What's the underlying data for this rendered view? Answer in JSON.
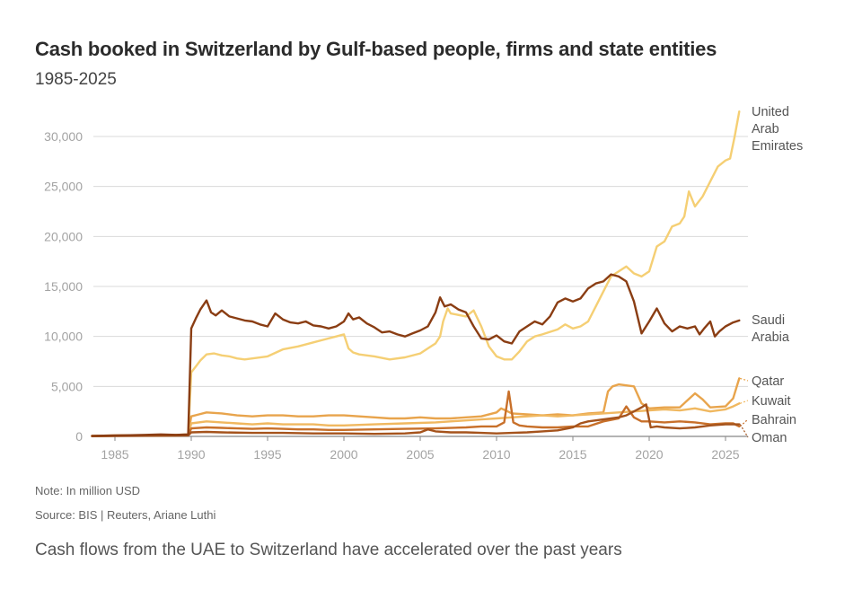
{
  "chart_data": {
    "type": "line",
    "title": "Cash booked in Switzerland by Gulf-based people, firms and state entities",
    "subtitle": "1985-2025",
    "xlabel": "",
    "ylabel": "",
    "xlim": [
      1983.5,
      2026.5
    ],
    "ylim": [
      0,
      33000
    ],
    "yticks": [
      0,
      5000,
      10000,
      15000,
      20000,
      25000,
      30000
    ],
    "ytick_labels": [
      "0",
      "5,000",
      "10,000",
      "15,000",
      "20,000",
      "25,000",
      "30,000"
    ],
    "xticks": [
      1985,
      1990,
      1995,
      2000,
      2005,
      2010,
      2015,
      2020,
      2025
    ],
    "xtick_labels": [
      "1985",
      "1990",
      "1995",
      "2000",
      "2005",
      "2010",
      "2015",
      "2020",
      "2025"
    ],
    "grid": true,
    "series": [
      {
        "name": "United Arab Emirates",
        "label_lines": [
          "United",
          "Arab",
          "Emirates"
        ],
        "color": "#f5cf74",
        "x": [
          1983.5,
          1985,
          1986,
          1987,
          1988,
          1989,
          1989.8,
          1990.0,
          1990.3,
          1990.6,
          1991.0,
          1991.5,
          1992,
          1992.5,
          1993,
          1993.5,
          1994,
          1995,
          1996,
          1997,
          1998,
          1999,
          1999.5,
          2000,
          2000.3,
          2000.6,
          2001,
          2002,
          2003,
          2004,
          2005,
          2005.5,
          2006,
          2006.3,
          2006.5,
          2006.8,
          2007,
          2008,
          2008.5,
          2009,
          2009.5,
          2010,
          2010.5,
          2011,
          2011.5,
          2012,
          2012.5,
          2013,
          2014,
          2014.5,
          2015,
          2015.5,
          2016,
          2016.5,
          2017,
          2017.5,
          2018,
          2018.5,
          2019,
          2019.5,
          2020,
          2020.5,
          2021,
          2021.5,
          2022,
          2022.3,
          2022.6,
          2023,
          2023.5,
          2024,
          2024.5,
          2025,
          2025.3,
          2025.6,
          2025.9
        ],
        "y": [
          50,
          80,
          100,
          120,
          130,
          150,
          200,
          6400,
          7000,
          7600,
          8200,
          8300,
          8100,
          8000,
          7800,
          7700,
          7800,
          8000,
          8700,
          9000,
          9400,
          9800,
          10000,
          10200,
          8800,
          8400,
          8200,
          8000,
          7700,
          7900,
          8300,
          8800,
          9300,
          10000,
          11500,
          12800,
          12300,
          12000,
          12600,
          11000,
          9000,
          8000,
          7700,
          7700,
          8500,
          9500,
          10000,
          10200,
          10700,
          11200,
          10800,
          11000,
          11500,
          13000,
          14500,
          16000,
          16500,
          17000,
          16300,
          16000,
          16500,
          19000,
          19500,
          21000,
          21300,
          22000,
          24500,
          23000,
          24000,
          25500,
          27000,
          27600,
          27800,
          30000,
          32500
        ]
      },
      {
        "name": "Saudi Arabia",
        "label_lines": [
          "Saudi",
          "Arabia"
        ],
        "color": "#8a3d13",
        "x": [
          1983.5,
          1985,
          1986,
          1987,
          1988,
          1989,
          1989.8,
          1990.0,
          1990.3,
          1990.6,
          1991.0,
          1991.3,
          1991.6,
          1992,
          1992.5,
          1993,
          1993.5,
          1994,
          1994.5,
          1995,
          1995.5,
          1996,
          1996.5,
          1997,
          1997.5,
          1998,
          1998.5,
          1999,
          1999.5,
          2000,
          2000.3,
          2000.6,
          2001,
          2001.5,
          2002,
          2002.5,
          2003,
          2003.5,
          2004,
          2004.5,
          2005,
          2005.5,
          2006,
          2006.3,
          2006.6,
          2007,
          2007.5,
          2008,
          2008.5,
          2009,
          2009.5,
          2010,
          2010.5,
          2011,
          2011.5,
          2012,
          2012.5,
          2013,
          2013.5,
          2014,
          2014.5,
          2015,
          2015.5,
          2016,
          2016.5,
          2017,
          2017.5,
          2018,
          2018.5,
          2019,
          2019.5,
          2020,
          2020.5,
          2021,
          2021.5,
          2022,
          2022.5,
          2023,
          2023.3,
          2023.6,
          2024,
          2024.3,
          2024.6,
          2025,
          2025.5,
          2025.9
        ],
        "y": [
          50,
          100,
          120,
          150,
          200,
          150,
          200,
          10800,
          11800,
          12700,
          13600,
          12400,
          12100,
          12600,
          12000,
          11800,
          11600,
          11500,
          11200,
          11000,
          12300,
          11700,
          11400,
          11300,
          11500,
          11100,
          11000,
          10800,
          11000,
          11500,
          12300,
          11700,
          11900,
          11300,
          10900,
          10400,
          10500,
          10200,
          10000,
          10300,
          10600,
          11000,
          12400,
          13900,
          13000,
          13200,
          12700,
          12400,
          11000,
          9800,
          9700,
          10100,
          9500,
          9300,
          10500,
          11000,
          11500,
          11200,
          12000,
          13400,
          13800,
          13500,
          13800,
          14800,
          15300,
          15500,
          16200,
          16000,
          15500,
          13500,
          10300,
          11500,
          12800,
          11300,
          10500,
          11000,
          10800,
          11000,
          10200,
          10800,
          11500,
          10000,
          10500,
          11000,
          11400,
          11600
        ]
      },
      {
        "name": "Qatar",
        "label_lines": [
          "Qatar"
        ],
        "color": "#e8a44c",
        "x": [
          1983.5,
          1985,
          1987,
          1989,
          1989.8,
          1990.0,
          1990.5,
          1991,
          1992,
          1993,
          1994,
          1995,
          1996,
          1997,
          1998,
          1999,
          2000,
          2001,
          2002,
          2003,
          2004,
          2005,
          2006,
          2007,
          2008,
          2009,
          2010,
          2010.3,
          2010.6,
          2011,
          2012,
          2013,
          2014,
          2015,
          2016,
          2017,
          2017.3,
          2017.6,
          2018,
          2018.5,
          2019,
          2019.5,
          2020,
          2021,
          2022,
          2023,
          2023.5,
          2024,
          2025,
          2025.5,
          2025.9
        ],
        "y": [
          50,
          100,
          120,
          150,
          180,
          2000,
          2200,
          2400,
          2300,
          2100,
          2000,
          2100,
          2100,
          2000,
          2000,
          2100,
          2100,
          2000,
          1900,
          1800,
          1800,
          1900,
          1800,
          1800,
          1900,
          2000,
          2400,
          2800,
          2600,
          2300,
          2200,
          2100,
          2200,
          2100,
          2300,
          2400,
          4500,
          5000,
          5200,
          5100,
          5000,
          3300,
          2800,
          2900,
          2900,
          4300,
          3700,
          2900,
          3000,
          3800,
          5800
        ]
      },
      {
        "name": "Kuwait",
        "label_lines": [
          "Kuwait"
        ],
        "color": "#f0b860",
        "x": [
          1983.5,
          1985,
          1987,
          1989,
          1989.8,
          1990.0,
          1991,
          1992,
          1993,
          1994,
          1995,
          1996,
          1997,
          1998,
          1999,
          2000,
          2002,
          2004,
          2006,
          2008,
          2009,
          2010,
          2011,
          2012,
          2013,
          2014,
          2015,
          2016,
          2017,
          2018,
          2019,
          2020,
          2021,
          2022,
          2023,
          2024,
          2025,
          2025.5,
          2025.9
        ],
        "y": [
          30,
          60,
          80,
          100,
          120,
          1300,
          1500,
          1400,
          1300,
          1200,
          1300,
          1200,
          1200,
          1200,
          1100,
          1100,
          1200,
          1300,
          1400,
          1600,
          1700,
          1800,
          1900,
          2000,
          2100,
          2000,
          2100,
          2200,
          2300,
          2400,
          2500,
          2600,
          2700,
          2600,
          2800,
          2500,
          2700,
          3000,
          3300
        ]
      },
      {
        "name": "Bahrain",
        "label_lines": [
          "Bahrain"
        ],
        "color": "#c8702a",
        "x": [
          1983.5,
          1985,
          1987,
          1989,
          1989.8,
          1990.0,
          1991,
          1992,
          1993,
          1994,
          1995,
          1996,
          1997,
          1998,
          1999,
          2000,
          2002,
          2004,
          2006,
          2008,
          2009,
          2010,
          2010.5,
          2010.8,
          2011.1,
          2011.5,
          2012,
          2013,
          2014,
          2015,
          2016,
          2017,
          2018,
          2018.5,
          2019,
          2019.5,
          2020,
          2021,
          2022,
          2023,
          2024,
          2025,
          2025.5,
          2025.9
        ],
        "y": [
          30,
          60,
          80,
          100,
          120,
          800,
          900,
          850,
          800,
          750,
          800,
          750,
          700,
          700,
          650,
          650,
          700,
          750,
          800,
          900,
          1000,
          1000,
          1400,
          4500,
          1400,
          1100,
          1000,
          900,
          900,
          1000,
          1000,
          1500,
          1800,
          3000,
          1900,
          1500,
          1500,
          1400,
          1500,
          1400,
          1200,
          1300,
          1300,
          1000
        ]
      },
      {
        "name": "Oman",
        "label_lines": [
          "Oman"
        ],
        "color": "#a5531c",
        "x": [
          1983.5,
          1985,
          1987,
          1989,
          1989.8,
          1990.0,
          1991,
          1992,
          1994,
          1996,
          1998,
          2000,
          2002,
          2004,
          2005,
          2005.5,
          2006,
          2007,
          2008,
          2009,
          2010,
          2011,
          2012,
          2013,
          2014,
          2015,
          2015.5,
          2016,
          2017,
          2018,
          2018.5,
          2019,
          2019.5,
          2019.8,
          2020.1,
          2020.5,
          2021,
          2022,
          2023,
          2023.5,
          2024,
          2025,
          2025.5,
          2025.9
        ],
        "y": [
          20,
          40,
          60,
          80,
          100,
          400,
          450,
          400,
          350,
          350,
          300,
          300,
          250,
          300,
          400,
          700,
          500,
          400,
          400,
          350,
          300,
          350,
          400,
          500,
          600,
          900,
          1300,
          1500,
          1700,
          1900,
          2100,
          2500,
          2900,
          3200,
          900,
          1000,
          900,
          800,
          900,
          1000,
          1100,
          1200,
          1200,
          1200
        ]
      }
    ]
  },
  "note": "Note: In million USD",
  "source": "Source: BIS | Reuters, Ariane Luthi",
  "caption": "Cash flows from the UAE to Switzerland have accelerated over the past years"
}
